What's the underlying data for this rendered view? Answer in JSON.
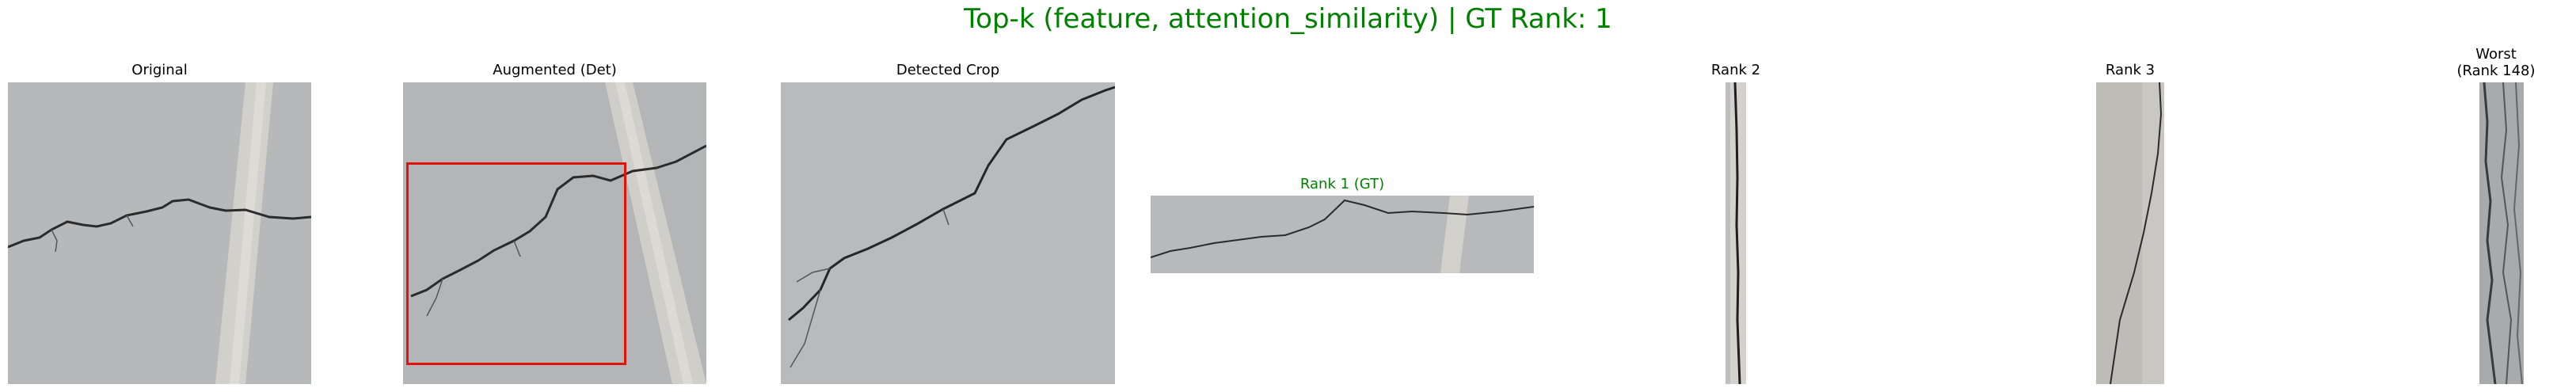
{
  "figure": {
    "title": "Top-k (feature, attention_similarity) | GT Rank: 1",
    "title_color": "#008000"
  },
  "panels": {
    "original": {
      "title": "Original"
    },
    "augmented": {
      "title": "Augmented (Det)",
      "box_color": "#e3120b"
    },
    "crop": {
      "title": "Detected Crop"
    },
    "rank1": {
      "title": "Rank 1 (GT)",
      "title_color": "#008000"
    },
    "rank2": {
      "title": "Rank 2"
    },
    "rank3": {
      "title": "Rank 3"
    },
    "worst": {
      "title_line1": "Worst",
      "title_line2": "(Rank 148)"
    }
  }
}
